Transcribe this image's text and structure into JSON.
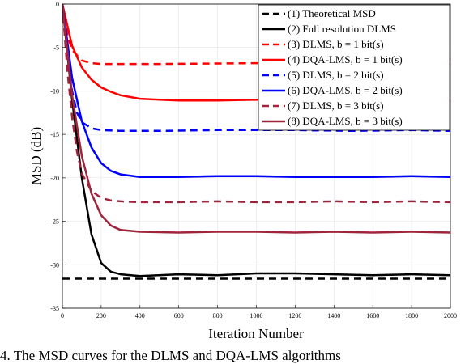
{
  "chart_data": {
    "type": "line",
    "xlabel": "Iteration Number",
    "ylabel": "MSD (dB)",
    "xlim": [
      0,
      2000
    ],
    "ylim": [
      -35,
      0
    ],
    "xticks": [
      0,
      200,
      400,
      600,
      800,
      1000,
      1200,
      1400,
      1600,
      1800,
      2000
    ],
    "yticks": [
      0,
      -5,
      -10,
      -15,
      -20,
      -25,
      -30,
      -35
    ],
    "grid": true,
    "legend_position": "top-right",
    "series": [
      {
        "name": "(1) Theoretical MSD",
        "color": "#000000",
        "dashed": true,
        "width": 2.5,
        "x": [
          0,
          2000
        ],
        "y": [
          -31.6,
          -31.6
        ]
      },
      {
        "name": "(2) Full resolution DLMS",
        "color": "#000000",
        "dashed": false,
        "width": 2.5,
        "x": [
          0,
          50,
          100,
          150,
          200,
          250,
          300,
          400,
          600,
          800,
          1000,
          1200,
          1400,
          1600,
          1800,
          2000
        ],
        "y": [
          0,
          -11,
          -20,
          -26.5,
          -29.8,
          -30.8,
          -31.1,
          -31.3,
          -31.1,
          -31.2,
          -31.0,
          -31.0,
          -31.1,
          -31.2,
          -31.1,
          -31.2
        ]
      },
      {
        "name": "(3) DLMS, b = 1 bit(s)",
        "color": "#ff0000",
        "dashed": true,
        "width": 2.5,
        "x": [
          0,
          25,
          50,
          100,
          150,
          200,
          300,
          500,
          1000,
          1500,
          2000
        ],
        "y": [
          0,
          -3.5,
          -5.3,
          -6.5,
          -6.8,
          -6.9,
          -6.9,
          -6.9,
          -6.8,
          -6.9,
          -6.9
        ]
      },
      {
        "name": "(4) DQA-LMS, b = 1 bit(s)",
        "color": "#ff0000",
        "dashed": false,
        "width": 2.5,
        "x": [
          0,
          50,
          100,
          150,
          200,
          250,
          300,
          400,
          500,
          600,
          800,
          1000,
          1200,
          1400,
          1600,
          1800,
          2000
        ],
        "y": [
          0,
          -4.8,
          -7.3,
          -8.7,
          -9.6,
          -10.1,
          -10.5,
          -10.9,
          -11.0,
          -11.1,
          -11.1,
          -11.0,
          -11.1,
          -11.0,
          -11.1,
          -11.1,
          -11.2
        ]
      },
      {
        "name": "(5) DLMS, b = 2 bit(s)",
        "color": "#0000ff",
        "dashed": true,
        "width": 2.5,
        "x": [
          0,
          25,
          50,
          75,
          100,
          150,
          200,
          300,
          500,
          800,
          1000,
          1200,
          1500,
          1800,
          2000
        ],
        "y": [
          0,
          -6,
          -10,
          -12.5,
          -13.6,
          -14.3,
          -14.5,
          -14.6,
          -14.6,
          -14.5,
          -14.5,
          -14.5,
          -14.6,
          -14.5,
          -14.6
        ]
      },
      {
        "name": "(6) DQA-LMS, b = 2 bit(s)",
        "color": "#0000ff",
        "dashed": false,
        "width": 2.5,
        "x": [
          0,
          50,
          100,
          150,
          200,
          250,
          300,
          400,
          600,
          800,
          1000,
          1200,
          1400,
          1600,
          1800,
          2000
        ],
        "y": [
          0,
          -8.5,
          -13.5,
          -16.5,
          -18.3,
          -19.2,
          -19.6,
          -19.9,
          -19.9,
          -19.8,
          -19.8,
          -19.9,
          -19.9,
          -19.9,
          -19.8,
          -19.9
        ]
      },
      {
        "name": "(7) DLMS, b = 3 bit(s)",
        "color": "#a0243c",
        "dashed": true,
        "width": 2.5,
        "x": [
          0,
          25,
          50,
          75,
          100,
          150,
          200,
          250,
          300,
          400,
          600,
          800,
          1000,
          1200,
          1400,
          1600,
          1800,
          2000
        ],
        "y": [
          0,
          -7.5,
          -13,
          -17,
          -19.5,
          -21.5,
          -22.3,
          -22.6,
          -22.7,
          -22.8,
          -22.8,
          -22.7,
          -22.8,
          -22.8,
          -22.7,
          -22.8,
          -22.7,
          -22.8
        ]
      },
      {
        "name": "(8) DQA-LMS, b = 3 bit(s)",
        "color": "#a0243c",
        "dashed": false,
        "width": 2.5,
        "x": [
          0,
          50,
          100,
          150,
          200,
          250,
          300,
          400,
          600,
          800,
          1000,
          1200,
          1400,
          1600,
          1800,
          2000
        ],
        "y": [
          0,
          -10.5,
          -17.5,
          -21.8,
          -24.3,
          -25.5,
          -26.0,
          -26.2,
          -26.3,
          -26.2,
          -26.2,
          -26.3,
          -26.2,
          -26.3,
          -26.2,
          -26.3
        ]
      }
    ]
  },
  "caption": "4.   The MSD curves for the DLMS and DQA-LMS algorithms"
}
